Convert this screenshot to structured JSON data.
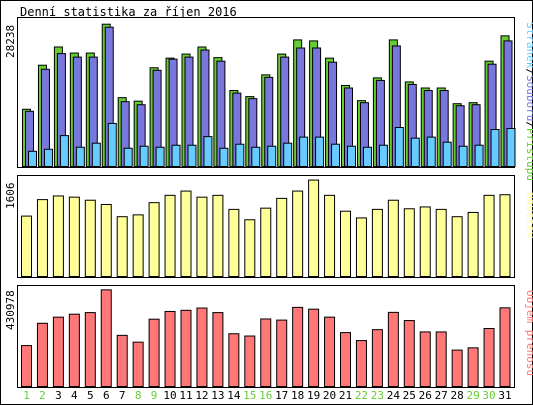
{
  "title": "Denní statistika za říjen 2016",
  "colors": {
    "hits": "#66cc33",
    "files": "#7777dd",
    "pages": "#66ccff",
    "visits": "#ffff99",
    "kbytes": "#ff7777",
    "weekend_day": "#66cc33",
    "weekday": "#000000",
    "panel_bg": "#ffffff",
    "frame": "#000000"
  },
  "chart_data": [
    {
      "type": "bar",
      "panel": "top",
      "ymax_label": "28238",
      "ylim": [
        0,
        28238
      ],
      "legend": [
        {
          "label": "Stránek",
          "color": "#66ccff"
        },
        {
          "label": "/",
          "color": "#000000"
        },
        {
          "label": "Souborů",
          "color": "#7777dd"
        },
        {
          "label": "/",
          "color": "#000000"
        },
        {
          "label": "Přístupů",
          "color": "#66cc33"
        }
      ],
      "categories": [
        "1",
        "2",
        "3",
        "4",
        "5",
        "6",
        "7",
        "8",
        "9",
        "10",
        "11",
        "12",
        "13",
        "14",
        "15",
        "16",
        "17",
        "18",
        "19",
        "20",
        "21",
        "22",
        "23",
        "24",
        "25",
        "26",
        "27",
        "28",
        "29",
        "30",
        "31"
      ],
      "series": [
        {
          "name": "Přístupů",
          "values": [
            11300,
            20000,
            23600,
            22400,
            22400,
            28100,
            13600,
            12900,
            19500,
            21400,
            22200,
            23600,
            21500,
            15000,
            13800,
            18100,
            22200,
            25000,
            24800,
            21400,
            16000,
            13000,
            17500,
            25000,
            16700,
            15500,
            15500,
            12400,
            12600,
            20800,
            25800
          ]
        },
        {
          "name": "Souborů",
          "values": [
            10900,
            19200,
            22300,
            21600,
            21600,
            27500,
            12800,
            12200,
            19000,
            21200,
            21600,
            23000,
            20800,
            14500,
            13400,
            17600,
            21600,
            23400,
            23400,
            20600,
            15500,
            12600,
            17000,
            23800,
            16200,
            15000,
            15000,
            12000,
            12200,
            20200,
            24800
          ]
        },
        {
          "name": "Stránek",
          "values": [
            3000,
            3400,
            6100,
            3800,
            4600,
            8500,
            3600,
            4000,
            3800,
            4200,
            4200,
            5900,
            3600,
            4400,
            3800,
            4000,
            4600,
            5800,
            5800,
            4400,
            4000,
            3800,
            4200,
            7700,
            5600,
            5800,
            4800,
            4000,
            4200,
            7300,
            7500
          ]
        }
      ]
    },
    {
      "type": "bar",
      "panel": "middle",
      "ymax_label": "1606",
      "ylim": [
        0,
        1606
      ],
      "legend": [
        {
          "label": "Návštěv",
          "color": "#ffff99"
        }
      ],
      "categories": [
        "1",
        "2",
        "3",
        "4",
        "5",
        "6",
        "7",
        "8",
        "9",
        "10",
        "11",
        "12",
        "13",
        "14",
        "15",
        "16",
        "17",
        "18",
        "19",
        "20",
        "21",
        "22",
        "23",
        "24",
        "25",
        "26",
        "27",
        "28",
        "29",
        "30",
        "31"
      ],
      "series": [
        {
          "name": "Návštěv",
          "values": [
            990,
            1260,
            1320,
            1300,
            1250,
            1180,
            980,
            1010,
            1210,
            1330,
            1400,
            1300,
            1330,
            1100,
            930,
            1120,
            1280,
            1400,
            1580,
            1330,
            1070,
            960,
            1100,
            1250,
            1110,
            1140,
            1100,
            980,
            1050,
            1330,
            1340
          ]
        }
      ]
    },
    {
      "type": "bar",
      "panel": "bottom",
      "ymax_label": "430978",
      "ylim": [
        0,
        430978
      ],
      "legend": [
        {
          "label": "Objem přenosu",
          "color": "#ff7777"
        }
      ],
      "categories": [
        "1",
        "2",
        "3",
        "4",
        "5",
        "6",
        "7",
        "8",
        "9",
        "10",
        "11",
        "12",
        "13",
        "14",
        "15",
        "16",
        "17",
        "18",
        "19",
        "20",
        "21",
        "22",
        "23",
        "24",
        "25",
        "26",
        "27",
        "28",
        "29",
        "30",
        "31"
      ],
      "series": [
        {
          "name": "Objem přenosu",
          "values": [
            180000,
            278000,
            305000,
            318000,
            325000,
            425000,
            225000,
            195000,
            296000,
            330000,
            335000,
            345000,
            325000,
            232000,
            222000,
            297000,
            292000,
            348000,
            340000,
            305000,
            237000,
            202000,
            250000,
            326000,
            290000,
            240000,
            240000,
            160000,
            170000,
            255000,
            346000
          ]
        }
      ]
    }
  ],
  "day_labels": [
    "1",
    "2",
    "3",
    "4",
    "5",
    "6",
    "7",
    "8",
    "9",
    "10",
    "11",
    "12",
    "13",
    "14",
    "15",
    "16",
    "17",
    "18",
    "19",
    "20",
    "21",
    "22",
    "23",
    "24",
    "25",
    "26",
    "27",
    "28",
    "29",
    "30",
    "31"
  ],
  "weekend_days": [
    1,
    2,
    8,
    9,
    15,
    16,
    22,
    23,
    29,
    30
  ]
}
